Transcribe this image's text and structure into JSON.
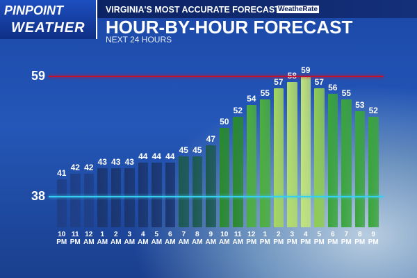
{
  "header": {
    "brand_top": "PINPOINT",
    "brand_bottom": "WEATHER",
    "tagline": "VIRGINIA'S MOST ACCURATE FORECAST",
    "badge": "WeatheRate"
  },
  "chart_data": {
    "type": "bar",
    "title": "HOUR-BY-HOUR FORECAST",
    "subtitle": "NEXT 24 HOURS",
    "categories": [
      "10 PM",
      "11 PM",
      "12 AM",
      "1 AM",
      "2 AM",
      "3 AM",
      "4 AM",
      "5 AM",
      "6 AM",
      "7 AM",
      "8 AM",
      "9 AM",
      "10 AM",
      "11 AM",
      "12 PM",
      "1 PM",
      "2 PM",
      "3 PM",
      "4 PM",
      "5 PM",
      "6 PM",
      "7 PM",
      "8 PM",
      "9 PM"
    ],
    "values": [
      41,
      42,
      42,
      43,
      43,
      43,
      44,
      44,
      44,
      45,
      45,
      47,
      50,
      52,
      54,
      55,
      57,
      58,
      59,
      57,
      56,
      55,
      53,
      52
    ],
    "colors": [
      "#1f3f86",
      "#1f3f86",
      "#1f3f86",
      "#1b3670",
      "#1b3670",
      "#1b3670",
      "#1b3670",
      "#1b3670",
      "#1b3670",
      "#1d5950",
      "#1d5950",
      "#1d5950",
      "#2a8a2c",
      "#2a8a2c",
      "#4caf3c",
      "#4caf3c",
      "#a6d65e",
      "#b4de6a",
      "#c2e478",
      "#90cc52",
      "#3aa53a",
      "#3aa53a",
      "#3aa53a",
      "#3aa53a"
    ],
    "ylim": [
      33,
      60
    ],
    "reference_lines": [
      {
        "value": 59,
        "color": "#c4102a"
      },
      {
        "value": 38,
        "color": "#38d0f0"
      }
    ]
  }
}
